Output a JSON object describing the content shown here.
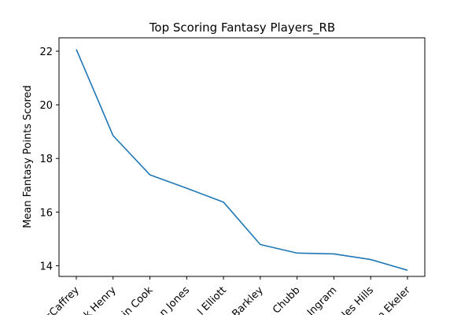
{
  "chart_data": {
    "type": "line",
    "title": "Top Scoring Fantasy Players_RB",
    "xlabel": "",
    "ylabel": "Mean Fantasy Points Scored",
    "categories": [
      "Christian McCaffrey",
      "Derrick Henry",
      "Dalvin Cook",
      "Aaron Jones",
      "Ezekiel Elliott",
      "Saquon Barkley",
      "Nick Chubb",
      "Mark Ingram",
      "Carlos Hyde Miles Hills",
      "Austin Ekeler"
    ],
    "tick_labels_visible": [
      "cCaffrey",
      "k Henry",
      "in Cook",
      "n Jones",
      "l Elliott",
      "Barkley",
      "Chubb",
      "Ingram",
      "les Hills",
      "n Ekeler"
    ],
    "series": [
      {
        "values": [
          22.07,
          18.85,
          17.39,
          16.89,
          16.37,
          14.79,
          14.47,
          14.44,
          14.23,
          13.83
        ]
      }
    ],
    "ylim": [
      13.6,
      22.5
    ],
    "yticks": [
      14,
      16,
      18,
      20,
      22
    ],
    "grid": false,
    "legend": "none",
    "colors": {
      "line": "#1f77b4",
      "axes": "#000000",
      "background": "#ffffff"
    }
  }
}
